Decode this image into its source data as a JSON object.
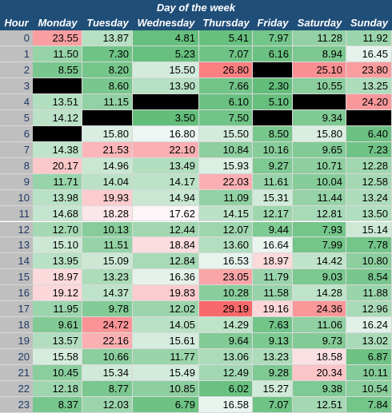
{
  "table": {
    "title": "Day of the week",
    "hour_header": "Hour",
    "days": [
      "Monday",
      "Tuesday",
      "Wednesday",
      "Thursday",
      "Friday",
      "Saturday",
      "Sunday"
    ],
    "hours": [
      "0",
      "1",
      "2",
      "3",
      "4",
      "5",
      "6",
      "7",
      "8",
      "9",
      "10",
      "11",
      "12",
      "13",
      "14",
      "15",
      "16",
      "17",
      "18",
      "19",
      "20",
      "21",
      "22",
      "23"
    ],
    "values": [
      [
        "23.55",
        "13.87",
        "4.81",
        "5.41",
        "7.97",
        "11.28",
        "11.92"
      ],
      [
        "11.50",
        "7.30",
        "5.23",
        "7.07",
        "6.16",
        "8.94",
        "16.45"
      ],
      [
        "8.55",
        "8.20",
        "15.50",
        "26.80",
        "",
        "25.10",
        "23.80"
      ],
      [
        "",
        "8.60",
        "13.90",
        "7.66",
        "2.30",
        "10.55",
        "13.25"
      ],
      [
        "13.51",
        "11.15",
        "",
        "6.10",
        "5.10",
        "",
        "24.20"
      ],
      [
        "14.12",
        "",
        "3.50",
        "7.50",
        "",
        "9.34",
        ""
      ],
      [
        "",
        "15.80",
        "16.80",
        "15.50",
        "8.50",
        "15.80",
        "6.40"
      ],
      [
        "14.38",
        "21.53",
        "22.10",
        "10.84",
        "10.16",
        "9.65",
        "7.23"
      ],
      [
        "20.17",
        "14.96",
        "13.49",
        "15.93",
        "9.27",
        "10.71",
        "12.28"
      ],
      [
        "11.71",
        "14.04",
        "14.17",
        "22.03",
        "11.61",
        "10.04",
        "12.58"
      ],
      [
        "13.98",
        "19.93",
        "14.94",
        "11.09",
        "15.31",
        "11.44",
        "13.24"
      ],
      [
        "14.68",
        "18.28",
        "17.62",
        "14.15",
        "12.17",
        "12.81",
        "13.50"
      ],
      [
        "12.70",
        "10.13",
        "12.44",
        "12.07",
        "9.44",
        "7.93",
        "15.14"
      ],
      [
        "15.10",
        "11.51",
        "18.84",
        "13.60",
        "16.64",
        "7.99",
        "7.78"
      ],
      [
        "13.95",
        "15.09",
        "12.84",
        "16.53",
        "18.97",
        "14.42",
        "10.80"
      ],
      [
        "18.97",
        "13.23",
        "16.36",
        "23.05",
        "11.79",
        "9.03",
        "8.54"
      ],
      [
        "19.12",
        "14.37",
        "19.83",
        "10.28",
        "11.58",
        "14.28",
        "11.88"
      ],
      [
        "11.95",
        "9.78",
        "12.02",
        "29.19",
        "19.16",
        "24.36",
        "12.96"
      ],
      [
        "9.61",
        "24.72",
        "14.05",
        "14.29",
        "7.63",
        "11.06",
        "16.24"
      ],
      [
        "13.57",
        "22.16",
        "15.61",
        "9.64",
        "9.13",
        "9.73",
        "13.02"
      ],
      [
        "15.58",
        "10.66",
        "11.77",
        "13.06",
        "13.23",
        "18.58",
        "6.87"
      ],
      [
        "10.45",
        "15.34",
        "15.49",
        "12.49",
        "9.28",
        "20.34",
        "10.11"
      ],
      [
        "12.18",
        "8.77",
        "10.85",
        "6.02",
        "15.27",
        "9.38",
        "10.54"
      ],
      [
        "8.37",
        "12.03",
        "6.79",
        "16.58",
        "7.07",
        "12.51",
        "7.84"
      ]
    ],
    "colors": {
      "header_bg": "#1f4e78",
      "header_text": "#ffffff",
      "hour_bg": "#bfbfbf",
      "hour_text": "#1f3864",
      "missing": "#000000",
      "scale_low": "#63be7b",
      "scale_mid": "#fcfcff",
      "scale_high": "#f8696b"
    },
    "scale_midpoint": 17.5
  }
}
